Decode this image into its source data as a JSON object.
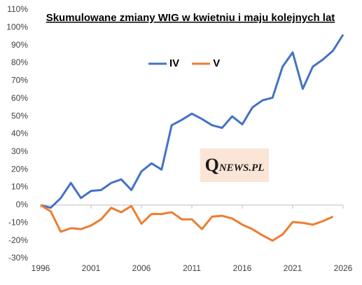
{
  "chart_data": {
    "type": "line",
    "title": "Skumulowane zmiany WIG w kwietniu i maju kolejnych lat",
    "watermark": "QNEWS.PL",
    "x": [
      1996,
      1997,
      1998,
      1999,
      2000,
      2001,
      2002,
      2003,
      2004,
      2005,
      2006,
      2007,
      2008,
      2009,
      2010,
      2011,
      2012,
      2013,
      2014,
      2015,
      2016,
      2017,
      2018,
      2019,
      2020,
      2021,
      2022,
      2023,
      2024,
      2025,
      2026
    ],
    "series": [
      {
        "name": "IV",
        "color": "#4472c4",
        "values": [
          0,
          -1.5,
          4,
          12.5,
          4,
          8,
          8.5,
          12.5,
          14.5,
          8.5,
          19,
          23.5,
          20,
          45,
          48,
          51.5,
          48.5,
          45,
          43.5,
          50,
          45.5,
          55,
          59,
          60.5,
          78,
          86,
          65.5,
          78,
          82,
          87,
          96
        ]
      },
      {
        "name": "V",
        "color": "#ed7d31",
        "values": [
          0,
          -3.5,
          -15,
          -13,
          -13.5,
          -11.5,
          -8,
          -1.5,
          -4,
          -0.5,
          -10.5,
          -5,
          -5,
          -4,
          -8,
          -8,
          -13.5,
          -6.5,
          -6,
          -7.5,
          -11,
          -13.5,
          -17,
          -20,
          -16.5,
          -9.5,
          -10,
          -11,
          -9,
          -6.5,
          null
        ]
      }
    ],
    "xlim": [
      1996,
      2026
    ],
    "xticks": [
      1996,
      2001,
      2006,
      2011,
      2016,
      2021,
      2026
    ],
    "ylim": [
      -30,
      110
    ],
    "yticks": [
      {
        "value": -30,
        "label": "-30%"
      },
      {
        "value": -20,
        "label": "-20%"
      },
      {
        "value": -10,
        "label": "-10%"
      },
      {
        "value": 0,
        "label": "0%"
      },
      {
        "value": 10,
        "label": "10%"
      },
      {
        "value": 20,
        "label": "20%"
      },
      {
        "value": 30,
        "label": "30%"
      },
      {
        "value": 40,
        "label": "40%"
      },
      {
        "value": 50,
        "label": "50%"
      },
      {
        "value": 60,
        "label": "60%"
      },
      {
        "value": 70,
        "label": "70%"
      },
      {
        "value": 80,
        "label": "80%"
      },
      {
        "value": 90,
        "label": "90%"
      },
      {
        "value": 100,
        "label": "100%"
      },
      {
        "value": 110,
        "label": "110%"
      }
    ],
    "grid": false,
    "legend": "top"
  }
}
